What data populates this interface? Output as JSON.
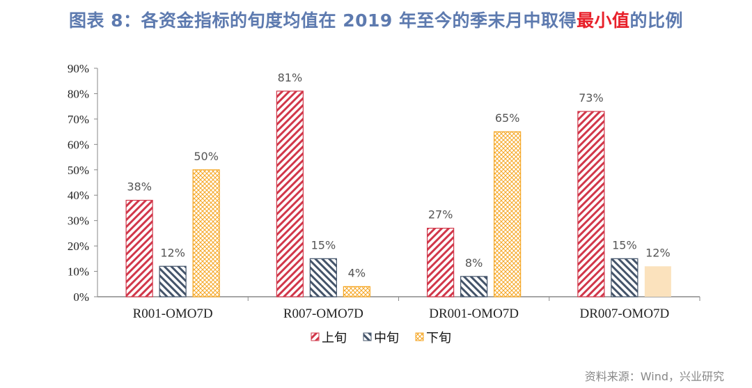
{
  "title": {
    "prefix": "图表 8：各资金指标的旬度均值在 2019 年至今的季末月中取得",
    "highlight": "最小值",
    "suffix": "的比例",
    "highlight_color": "#e8202a"
  },
  "source": "资料来源：Wind，兴业研究",
  "chart_data": {
    "type": "bar",
    "categories": [
      "R001-OMO7D",
      "R007-OMO7D",
      "DR001-OMO7D",
      "DR007-OMO7D"
    ],
    "series": [
      {
        "name": "上旬",
        "values": [
          38,
          81,
          27,
          73
        ],
        "color": "#d1374a",
        "pattern": "diagonal-down"
      },
      {
        "name": "中旬",
        "values": [
          12,
          15,
          8,
          15
        ],
        "color": "#44546a",
        "pattern": "diagonal-up"
      },
      {
        "name": "下旬",
        "values": [
          50,
          4,
          65,
          12
        ],
        "color": "#f5a623",
        "pattern": "crosshatch"
      }
    ],
    "solid_override": {
      "series": 2,
      "category": 3,
      "color": "#fbe2bd"
    },
    "ylim": [
      0,
      90
    ],
    "yticks": [
      "0%",
      "10%",
      "20%",
      "30%",
      "40%",
      "50%",
      "60%",
      "70%",
      "80%",
      "90%"
    ],
    "data_labels": true,
    "grid": false,
    "legend": "bottom"
  }
}
